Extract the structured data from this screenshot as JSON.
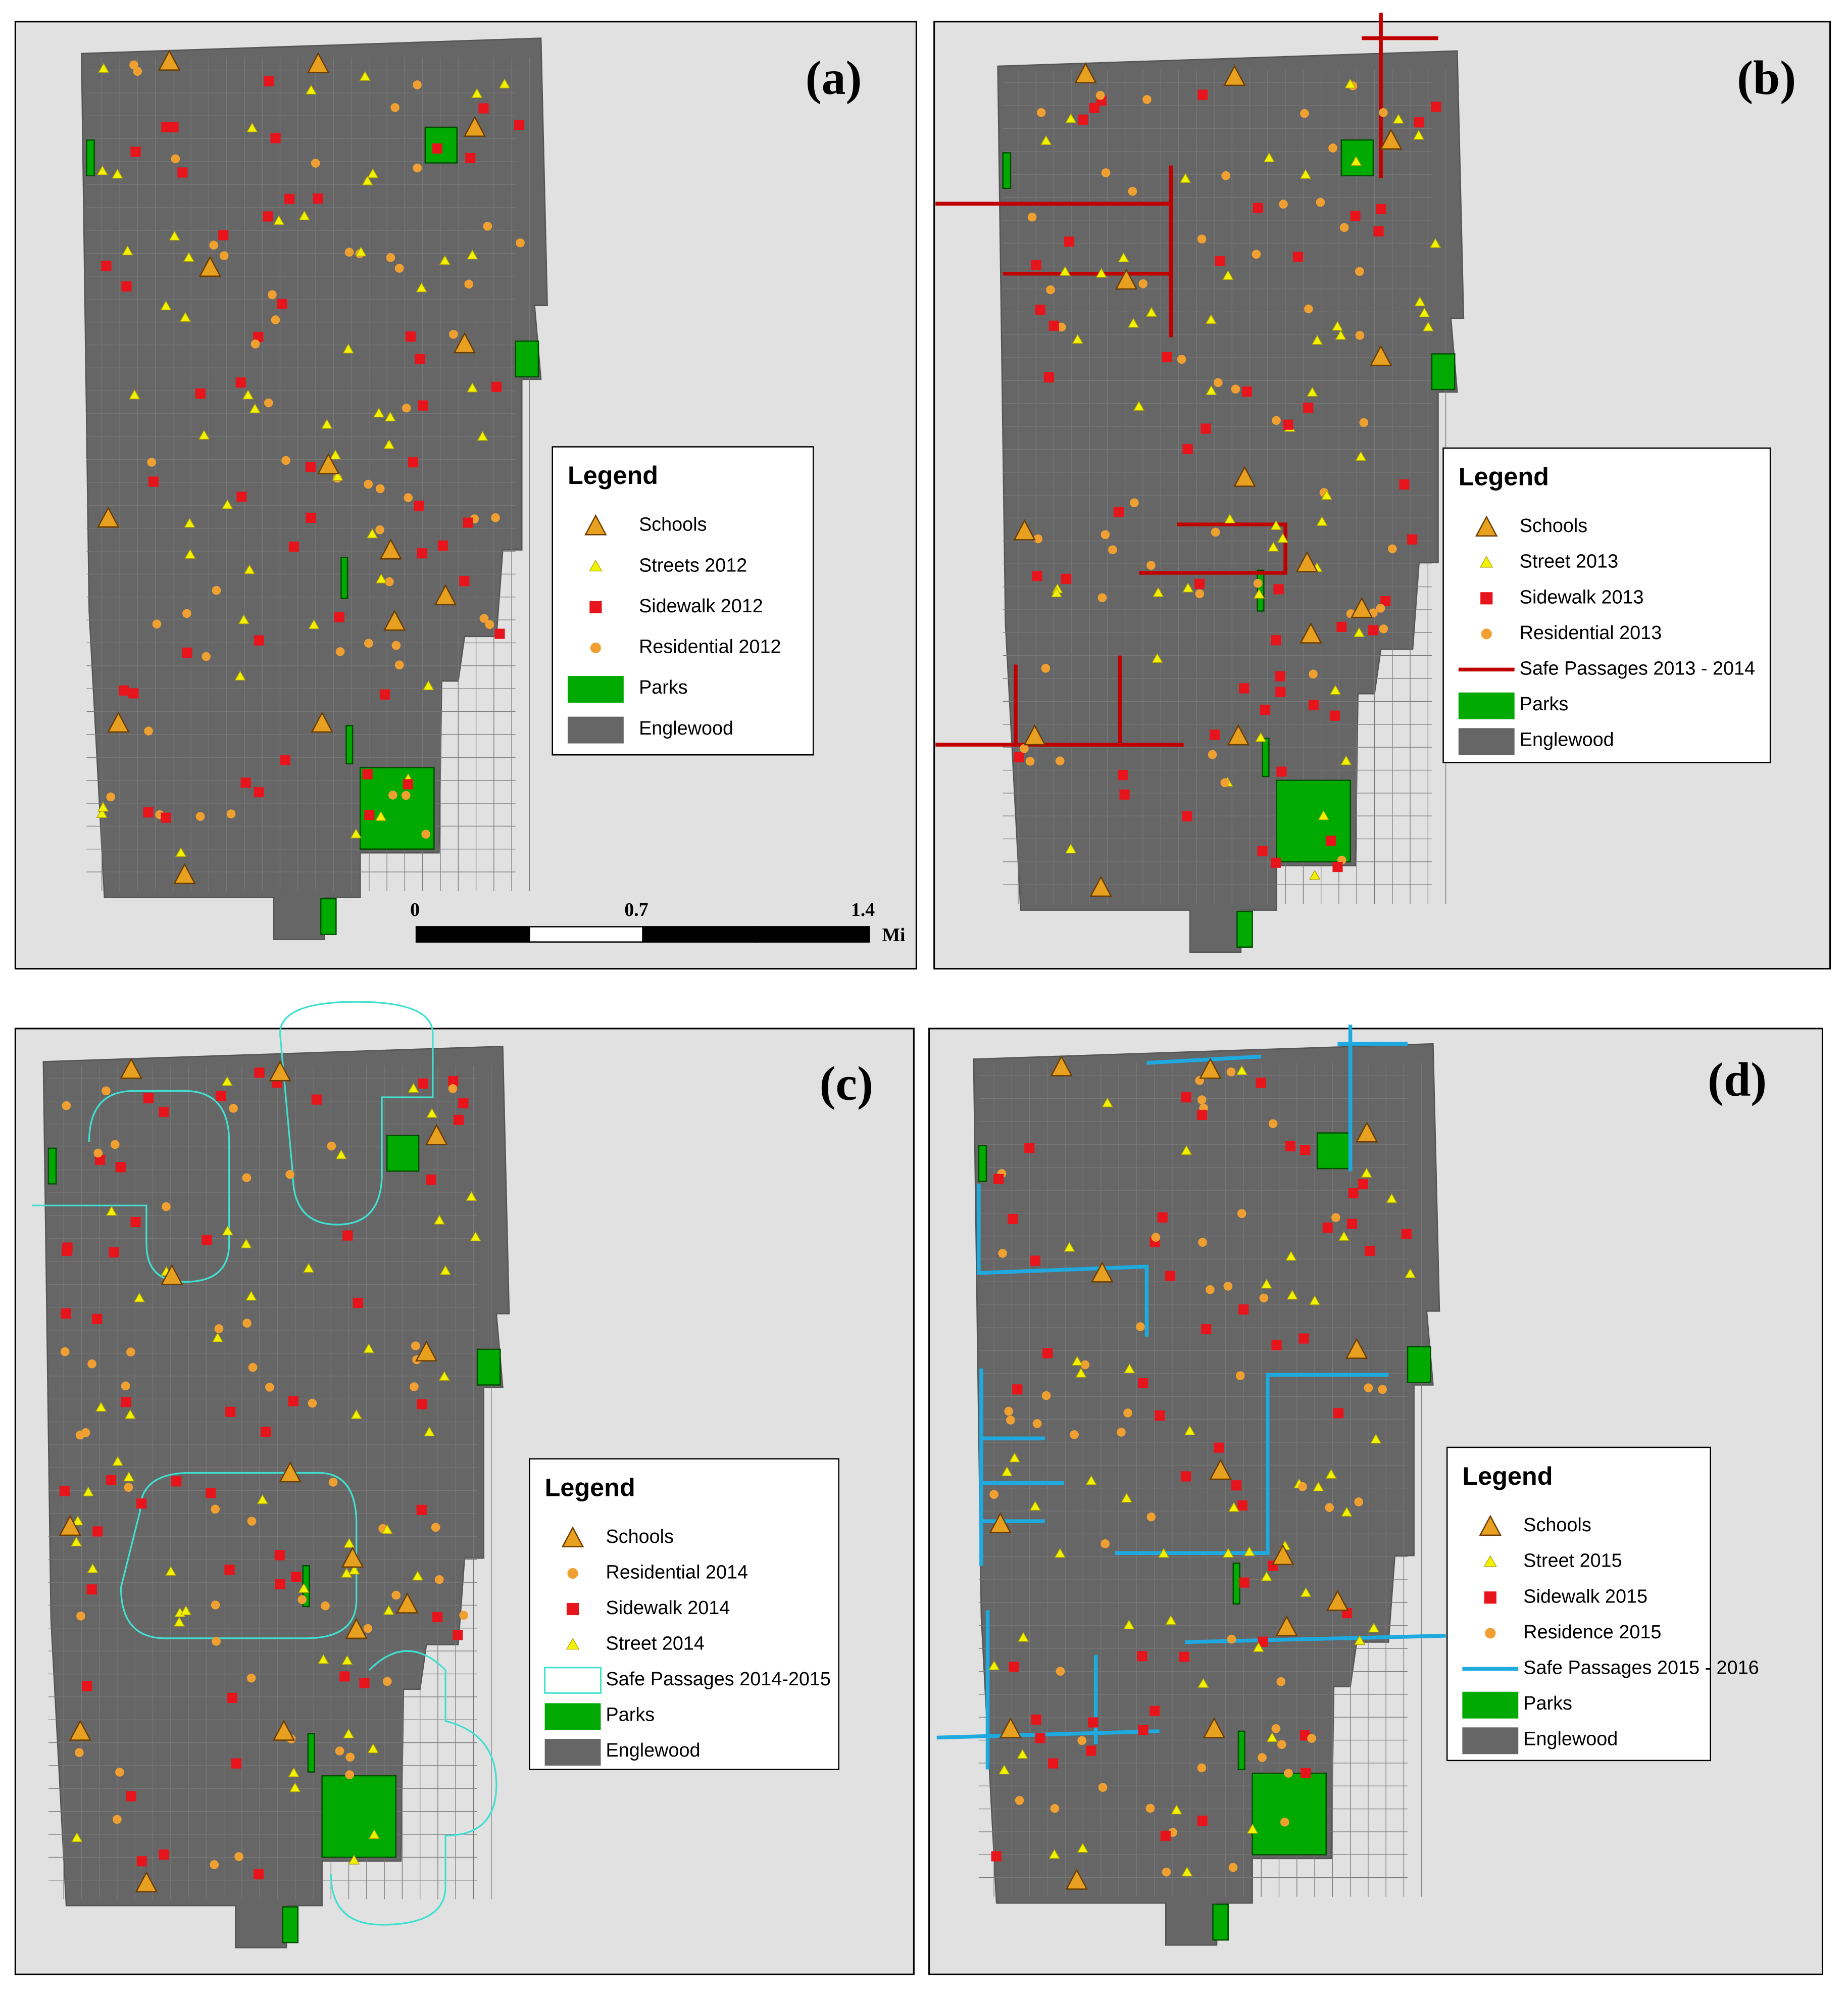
{
  "panels": [
    {
      "label": "(a)",
      "legend": {
        "title": "Legend",
        "items": [
          "Schools",
          "Streets 2012",
          "Sidewalk 2012",
          "Residential 2012",
          "Parks",
          "Englewood"
        ]
      },
      "scale_bar": {
        "labels": [
          "0",
          "0.7",
          "1.4"
        ],
        "unit": "Mi"
      }
    },
    {
      "label": "(b)",
      "legend": {
        "title": "Legend",
        "items": [
          "Schools",
          "Street 2013",
          "Sidewalk 2013",
          "Residential 2013",
          "Safe Passages 2013 - 2014",
          "Parks",
          "Englewood"
        ]
      }
    },
    {
      "label": "(c)",
      "legend": {
        "title": "Legend",
        "items": [
          "Schools",
          "Residential 2014",
          "Sidewalk 2014",
          "Street 2014",
          "Safe Passages 2014-2015",
          "Parks",
          "Englewood"
        ]
      }
    },
    {
      "label": "(d)",
      "legend": {
        "title": "Legend",
        "items": [
          "Schools",
          "Street 2015",
          "Sidewalk 2015",
          "Residence 2015",
          "Safe Passages 2015 - 2016",
          "Parks",
          "Englewood"
        ]
      }
    }
  ]
}
